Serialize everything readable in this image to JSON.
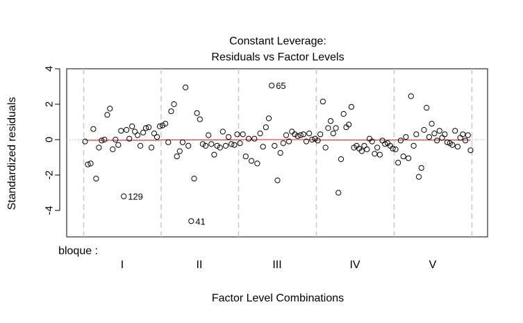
{
  "chart_data": {
    "type": "scatter",
    "title_line1": "Constant Leverage:",
    "title_line2": "Residuals vs Factor Levels",
    "xlabel": "Factor Level Combinations",
    "ylabel": "Standardized residuals",
    "factor_label": "bloque :",
    "ylim": [
      -5.6,
      4
    ],
    "yticks": [
      -4,
      -2,
      0,
      2,
      4
    ],
    "groups": [
      "I",
      "II",
      "III",
      "IV",
      "V"
    ],
    "grid": "dashed group separators",
    "colors": {
      "points": "#000000",
      "zero_line": "#bfbfbf",
      "smooth_line": "#e31a1c",
      "separators": "#c8c8c8"
    },
    "labeled_points": [
      {
        "label": "129",
        "group": "I",
        "y": -3.2
      },
      {
        "label": "41",
        "group": "II",
        "y": -4.6
      },
      {
        "label": "65",
        "group": "III",
        "y": 3.05
      }
    ],
    "series": [
      {
        "group": "I",
        "residuals": [
          -0.1,
          -1.4,
          -1.35,
          0.6,
          -2.2,
          -0.45,
          -0.05,
          0.0,
          1.4,
          1.75,
          -0.55,
          0.0,
          -0.3,
          0.5,
          -3.2,
          0.55,
          0.05,
          0.75,
          0.45,
          0.25,
          -0.35,
          0.4,
          0.65,
          0.7,
          -0.45,
          0.35,
          0.15,
          0.75
        ]
      },
      {
        "group": "II",
        "residuals": [
          0.8,
          0.9,
          -0.15,
          1.6,
          2.0,
          -0.95,
          -0.65,
          -0.15,
          2.95,
          -0.35,
          -4.6,
          -2.2,
          1.5,
          1.15,
          -0.25,
          -0.35,
          0.25,
          -0.25,
          -0.85,
          -0.35,
          -0.45,
          0.45,
          -0.35,
          0.15,
          -0.25,
          -0.3,
          0.3
        ]
      },
      {
        "group": "III",
        "residuals": [
          -0.2,
          0.3,
          -0.95,
          0.05,
          -1.2,
          0.05,
          -1.35,
          0.35,
          -0.4,
          0.7,
          1.2,
          3.05,
          -0.35,
          -2.3,
          -0.75,
          -0.2,
          0.25,
          -0.1,
          0.45,
          0.3,
          0.2,
          0.25,
          0.3,
          -0.1,
          0.35,
          0.0,
          0.05
        ]
      },
      {
        "group": "IV",
        "residuals": [
          -0.05,
          0.3,
          2.15,
          -0.45,
          0.65,
          1.05,
          0.35,
          0.65,
          -3.0,
          -1.1,
          1.45,
          0.7,
          0.85,
          1.85,
          -0.45,
          -0.35,
          -0.5,
          -0.65,
          -0.35,
          -0.55,
          0.05,
          -0.1,
          -0.8,
          -0.45,
          -0.85,
          -0.05,
          -0.25,
          -0.2,
          -0.35,
          -0.5
        ]
      },
      {
        "group": "V",
        "residuals": [
          -0.55,
          -1.3,
          -0.05,
          -0.95,
          0.15,
          -1.05,
          2.45,
          -0.35,
          0.3,
          -2.1,
          -1.6,
          0.55,
          1.8,
          0.15,
          0.9,
          0.35,
          -0.05,
          0.5,
          0.1,
          0.3,
          -0.15,
          -0.2,
          -0.3,
          0.5,
          -0.4,
          0.1,
          0.3,
          -0.05,
          0.25,
          -0.6
        ]
      }
    ]
  }
}
